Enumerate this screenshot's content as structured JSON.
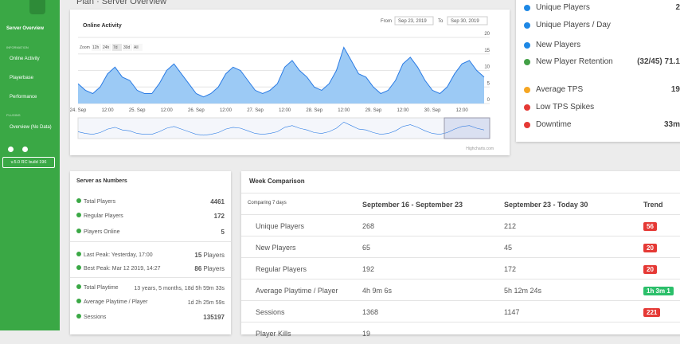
{
  "sidebar": {
    "items": [
      "Server Overview",
      "INFORMATION",
      "Online Activity",
      "Playerbase",
      "Performance",
      "PLUGINS",
      "Overview (No Data)"
    ],
    "version": "v.5.0 RC build 196"
  },
  "header": {
    "title": "Plan · Server Overview"
  },
  "chart_data": {
    "type": "area",
    "title": "Online Activity",
    "from_label": "From",
    "from": "Sep 23, 2019",
    "to_label": "To",
    "to": "Sep 30, 2019",
    "zoom_label": "Zoom",
    "zoom_options": [
      "12h",
      "24h",
      "7d",
      "30d",
      "All"
    ],
    "credit": "Highcharts.com",
    "categories": [
      "24. Sep",
      null,
      null,
      null,
      "12:00",
      null,
      null,
      null,
      "25. Sep",
      null,
      null,
      null,
      "12:00",
      null,
      null,
      null,
      "26. Sep",
      null,
      null,
      null,
      "12:00",
      null,
      null,
      null,
      "27. Sep",
      null,
      null,
      null,
      "12:00",
      null,
      null,
      null,
      "28. Sep",
      null,
      null,
      null,
      "12:00",
      null,
      null,
      null,
      "29. Sep",
      null,
      null,
      null,
      "12:00",
      null,
      null,
      null,
      "30. Sep",
      null,
      null,
      null,
      "12:00",
      null,
      null,
      null
    ],
    "values": [
      6,
      4,
      3,
      5,
      9,
      11,
      8,
      7,
      4,
      3,
      3,
      6,
      10,
      12,
      9,
      6,
      3,
      2,
      3,
      5,
      9,
      11,
      10,
      7,
      4,
      3,
      4,
      6,
      11,
      13,
      10,
      8,
      5,
      4,
      6,
      10,
      17,
      13,
      9,
      8,
      5,
      3,
      4,
      7,
      12,
      14,
      11,
      7,
      4,
      3,
      5,
      9,
      12,
      13,
      10,
      8
    ],
    "color": "#2a7be4",
    "fill": "#9ccaf5",
    "ylim": [
      0,
      20
    ],
    "yticks": [
      0,
      5,
      10,
      15,
      20
    ],
    "grid": true
  },
  "summary": {
    "rows": [
      {
        "label": "Unique Players",
        "value": "2"
      },
      {
        "label": "Unique Players / Day"
      },
      {
        "label": "New Players"
      },
      {
        "label": "New Player Retention",
        "value": "(32/45) 71.1"
      },
      {
        "label": "Average TPS",
        "value": "19"
      },
      {
        "label": "Low TPS Spikes"
      },
      {
        "label": "Downtime",
        "value": "33m"
      }
    ]
  },
  "numbers": {
    "title": "Server as Numbers",
    "rows": [
      {
        "label": "Total Players",
        "value": 4461
      },
      {
        "label": "Regular Players",
        "value": 172
      },
      {
        "label": "Players Online",
        "value": 5
      },
      {
        "label": "Last Peak: Yesterday, 17:00",
        "value": 15,
        "unit": "Players"
      },
      {
        "label": "Best Peak: Mar 12 2019, 14:27",
        "value": 86,
        "unit": "Players"
      },
      {
        "label": "Total Playtime",
        "value": "13 years, 5 months, 18d 5h 59m 33s"
      },
      {
        "label": "Average Playtime / Player",
        "value": "1d 2h 25m 59s"
      },
      {
        "label": "Sessions",
        "value": 135197
      }
    ]
  },
  "week": {
    "title": "Week Comparison",
    "header": [
      "Comparing 7 days",
      "September 16 - September 23",
      "September 23 - Today 30",
      "Trend"
    ],
    "rows": [
      {
        "label": "Unique Players",
        "a": 268,
        "b": 212,
        "trend": "56",
        "trend_color": "#e53935"
      },
      {
        "label": "New Players",
        "a": 65,
        "b": 45,
        "trend": "20",
        "trend_color": "#e53935"
      },
      {
        "label": "Regular Players",
        "a": 192,
        "b": 172,
        "trend": "20",
        "trend_color": "#e53935"
      },
      {
        "label": "Average Playtime / Player",
        "a": "4h 9m 6s",
        "b": "5h 12m 24s",
        "trend": "1h 3m 1",
        "trend_color": "#2bbf6a"
      },
      {
        "label": "Sessions",
        "a": 1368,
        "b": 1147,
        "trend": "221",
        "trend_color": "#e53935"
      },
      {
        "label": "Player Kills",
        "a": 19
      }
    ]
  }
}
